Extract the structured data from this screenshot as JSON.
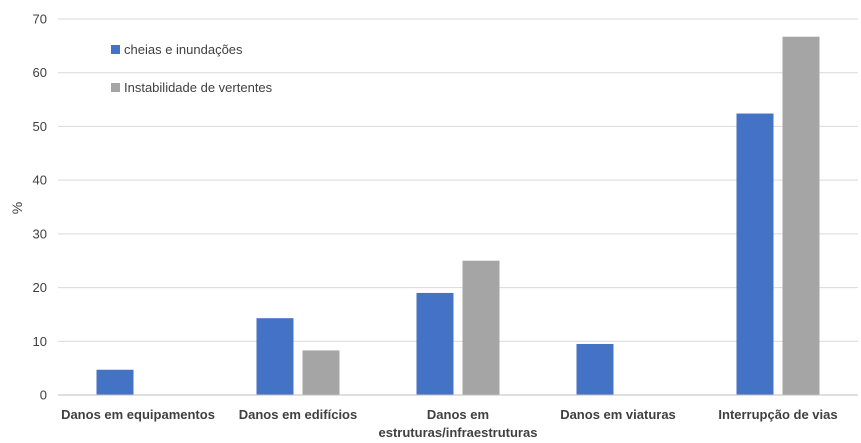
{
  "chart_data": {
    "type": "bar",
    "title": "",
    "xlabel": "",
    "ylabel": "%",
    "ylim": [
      0,
      70
    ],
    "yticks": [
      0,
      10,
      20,
      30,
      40,
      50,
      60,
      70
    ],
    "grid": true,
    "legend_position": "top-left",
    "categories": [
      [
        "Danos em equipamentos"
      ],
      [
        "Danos em edifícios"
      ],
      [
        "Danos em",
        "estruturas/infraestruturas"
      ],
      [
        "Danos em viaturas"
      ],
      [
        "Interrupção de vias"
      ]
    ],
    "series": [
      {
        "name": "cheias e inundações",
        "color": "#4472C4",
        "values": [
          4.7,
          14.3,
          19.0,
          9.5,
          52.4
        ]
      },
      {
        "name": "Instabilidade de vertentes",
        "color": "#A5A5A5",
        "values": [
          0,
          8.3,
          25.0,
          0,
          66.7
        ]
      }
    ]
  }
}
